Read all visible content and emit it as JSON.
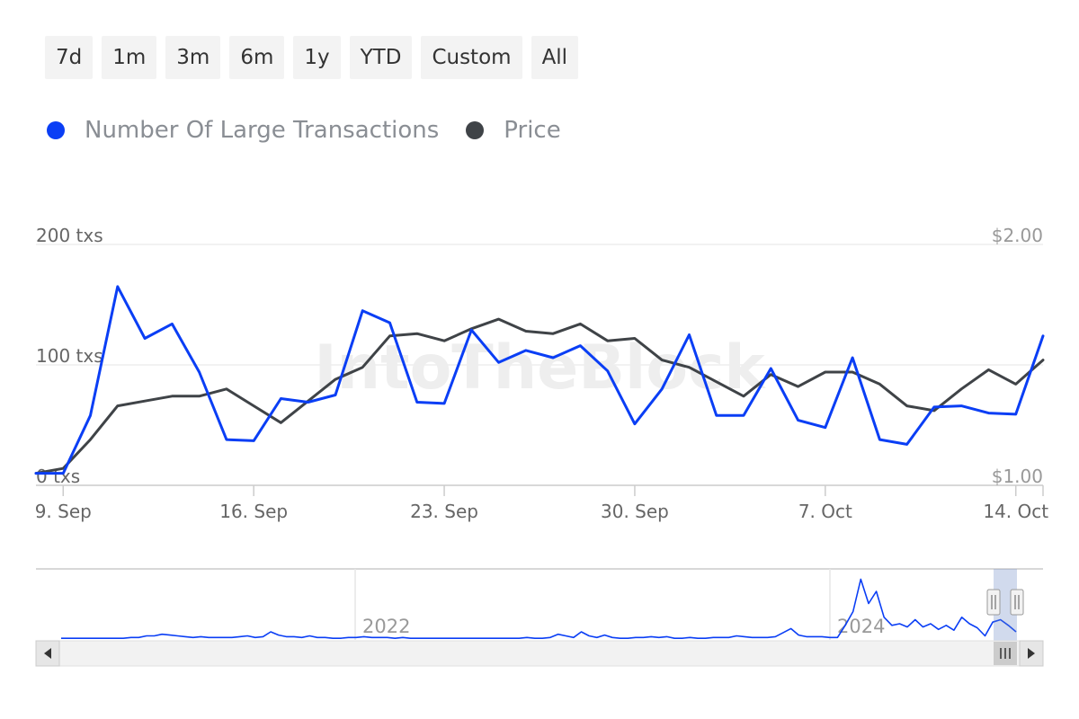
{
  "range_buttons": [
    "7d",
    "1m",
    "3m",
    "6m",
    "1y",
    "YTD",
    "Custom",
    "All"
  ],
  "legend": [
    {
      "label": "Number Of Large Transactions",
      "color": "#0a3ef5"
    },
    {
      "label": "Price",
      "color": "#3f4347"
    }
  ],
  "watermark": "IntoTheBlock",
  "chart_data": {
    "type": "line",
    "x": [
      "Sep 8",
      "Sep 9",
      "Sep 10",
      "Sep 11",
      "Sep 12",
      "Sep 13",
      "Sep 14",
      "Sep 15",
      "Sep 16",
      "Sep 17",
      "Sep 18",
      "Sep 19",
      "Sep 20",
      "Sep 21",
      "Sep 22",
      "Sep 23",
      "Sep 24",
      "Sep 25",
      "Sep 26",
      "Sep 27",
      "Sep 28",
      "Sep 29",
      "Sep 30",
      "Oct 1",
      "Oct 2",
      "Oct 3",
      "Oct 4",
      "Oct 5",
      "Oct 6",
      "Oct 7",
      "Oct 8",
      "Oct 9",
      "Oct 10",
      "Oct 11",
      "Oct 12",
      "Oct 13",
      "Oct 14",
      "Oct 15"
    ],
    "x_tick_labels": [
      "9. Sep",
      "16. Sep",
      "23. Sep",
      "30. Sep",
      "7. Oct",
      "14. Oct"
    ],
    "series": [
      {
        "name": "Number Of Large Transactions",
        "axis": "left",
        "color": "#0a3ef5",
        "values": [
          10,
          10,
          58,
          165,
          122,
          134,
          94,
          38,
          37,
          72,
          69,
          75,
          145,
          135,
          69,
          68,
          129,
          102,
          112,
          106,
          116,
          95,
          51,
          80,
          125,
          58,
          58,
          97,
          54,
          48,
          106,
          38,
          34,
          65,
          66,
          60,
          59,
          124
        ]
      },
      {
        "name": "Price",
        "axis": "right",
        "color": "#3f4347",
        "values": [
          1.05,
          1.07,
          1.19,
          1.33,
          1.35,
          1.37,
          1.37,
          1.4,
          1.33,
          1.26,
          1.35,
          1.44,
          1.49,
          1.62,
          1.63,
          1.6,
          1.65,
          1.69,
          1.64,
          1.63,
          1.67,
          1.6,
          1.61,
          1.52,
          1.49,
          1.43,
          1.37,
          1.46,
          1.41,
          1.47,
          1.47,
          1.42,
          1.33,
          1.31,
          1.4,
          1.48,
          1.42,
          1.52
        ]
      }
    ],
    "y_left": {
      "ylim": [
        0,
        200
      ],
      "ticks": [
        "0 txs",
        "100 txs",
        "200 txs"
      ]
    },
    "y_right": {
      "ylim": [
        1.0,
        2.0
      ],
      "ticks": [
        "$1.00",
        "$2.00"
      ]
    },
    "grid": true,
    "legend_position": "top-left",
    "navigator": {
      "labels": [
        "2022",
        "2024"
      ],
      "overview_values": [
        2,
        2,
        2,
        2,
        2,
        2,
        2,
        2,
        2,
        3,
        3,
        5,
        5,
        7,
        6,
        5,
        4,
        3,
        4,
        3,
        3,
        3,
        3,
        4,
        5,
        3,
        4,
        10,
        6,
        4,
        4,
        3,
        5,
        3,
        3,
        2,
        2,
        3,
        3,
        4,
        3,
        3,
        3,
        2,
        3,
        2,
        2,
        2,
        2,
        2,
        2,
        2,
        2,
        2,
        2,
        2,
        2,
        2,
        2,
        2,
        3,
        2,
        2,
        3,
        7,
        5,
        3,
        10,
        5,
        3,
        6,
        3,
        2,
        2,
        3,
        3,
        4,
        3,
        4,
        2,
        2,
        3,
        2,
        2,
        3,
        3,
        3,
        5,
        4,
        3,
        3,
        3,
        4,
        9,
        14,
        6,
        4,
        4,
        4,
        3,
        3,
        18,
        35,
        75,
        45,
        60,
        28,
        18,
        20,
        16,
        25,
        16,
        20,
        13,
        18,
        12,
        28,
        20,
        15,
        5,
        22,
        25,
        18,
        10
      ],
      "overview_ylim": [
        0,
        80
      ],
      "selection": [
        "Sep 8",
        "Oct 15"
      ]
    }
  }
}
